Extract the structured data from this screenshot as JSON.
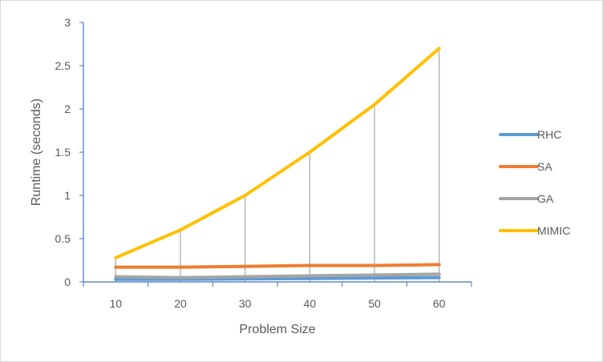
{
  "chart_data": {
    "type": "line",
    "title": "",
    "xlabel": "Problem Size",
    "ylabel": "Runtime (seconds)",
    "categories": [
      "10",
      "20",
      "30",
      "40",
      "50",
      "60"
    ],
    "ylim": [
      0,
      3
    ],
    "yticks": [
      "0",
      "0.5",
      "1",
      "1.5",
      "2",
      "2.5",
      "3"
    ],
    "grid": "drop lines from highest series to axis",
    "legend_position": "right",
    "series": [
      {
        "name": "RHC",
        "color": "#5b9bd5",
        "values": [
          0.03,
          0.03,
          0.035,
          0.04,
          0.045,
          0.05
        ]
      },
      {
        "name": "SA",
        "color": "#ed7d31",
        "values": [
          0.17,
          0.17,
          0.18,
          0.19,
          0.19,
          0.2
        ]
      },
      {
        "name": "GA",
        "color": "#a5a5a5",
        "values": [
          0.06,
          0.05,
          0.06,
          0.07,
          0.08,
          0.09
        ]
      },
      {
        "name": "MIMIC",
        "color": "#ffc000",
        "values": [
          0.28,
          0.6,
          1.0,
          1.5,
          2.05,
          2.7
        ]
      }
    ]
  }
}
